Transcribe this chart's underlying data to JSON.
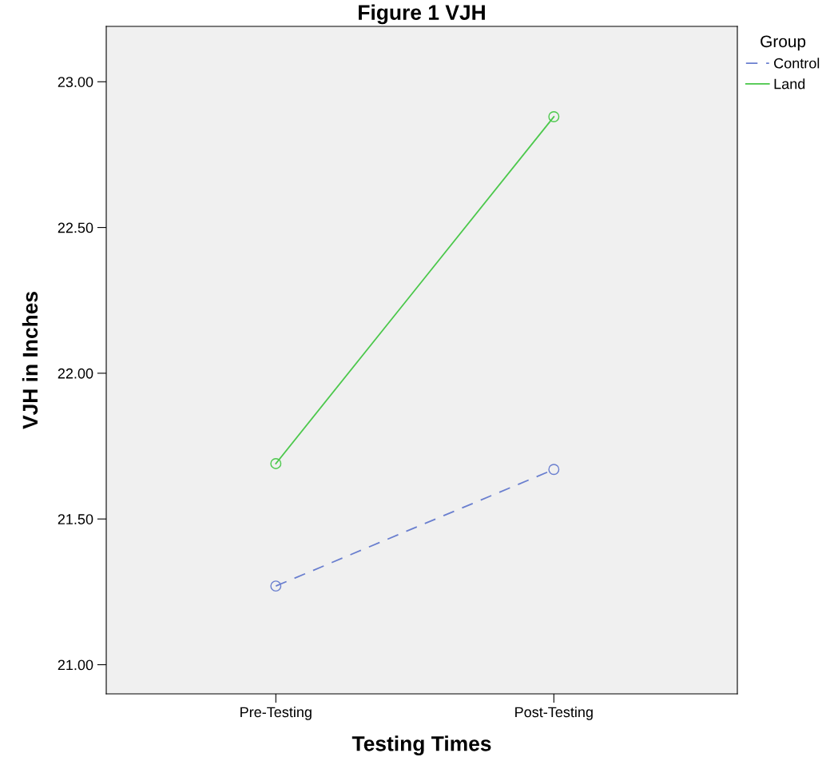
{
  "chart_data": {
    "type": "line",
    "title": "Figure 1 VJH",
    "xlabel": "Testing Times",
    "ylabel": "VJH in Inches",
    "legend_title": "Group",
    "categories": [
      "Pre-Testing",
      "Post-Testing"
    ],
    "series": [
      {
        "name": "Control",
        "color": "#6a7fcf",
        "values": [
          21.27,
          21.67
        ],
        "line_style": "dashed"
      },
      {
        "name": "Land",
        "color": "#4cc84c",
        "values": [
          21.69,
          22.88
        ],
        "line_style": "solid"
      }
    ],
    "ylim": [
      20.9,
      23.19
    ],
    "yticks": [
      {
        "value": 21,
        "label": "21.00"
      },
      {
        "value": 21.5,
        "label": "21.50"
      },
      {
        "value": 22,
        "label": "22.00"
      },
      {
        "value": 22.5,
        "label": "22.50"
      },
      {
        "value": 23,
        "label": "23.00"
      }
    ],
    "marker": "circle",
    "grid": false,
    "legend": "top right"
  }
}
